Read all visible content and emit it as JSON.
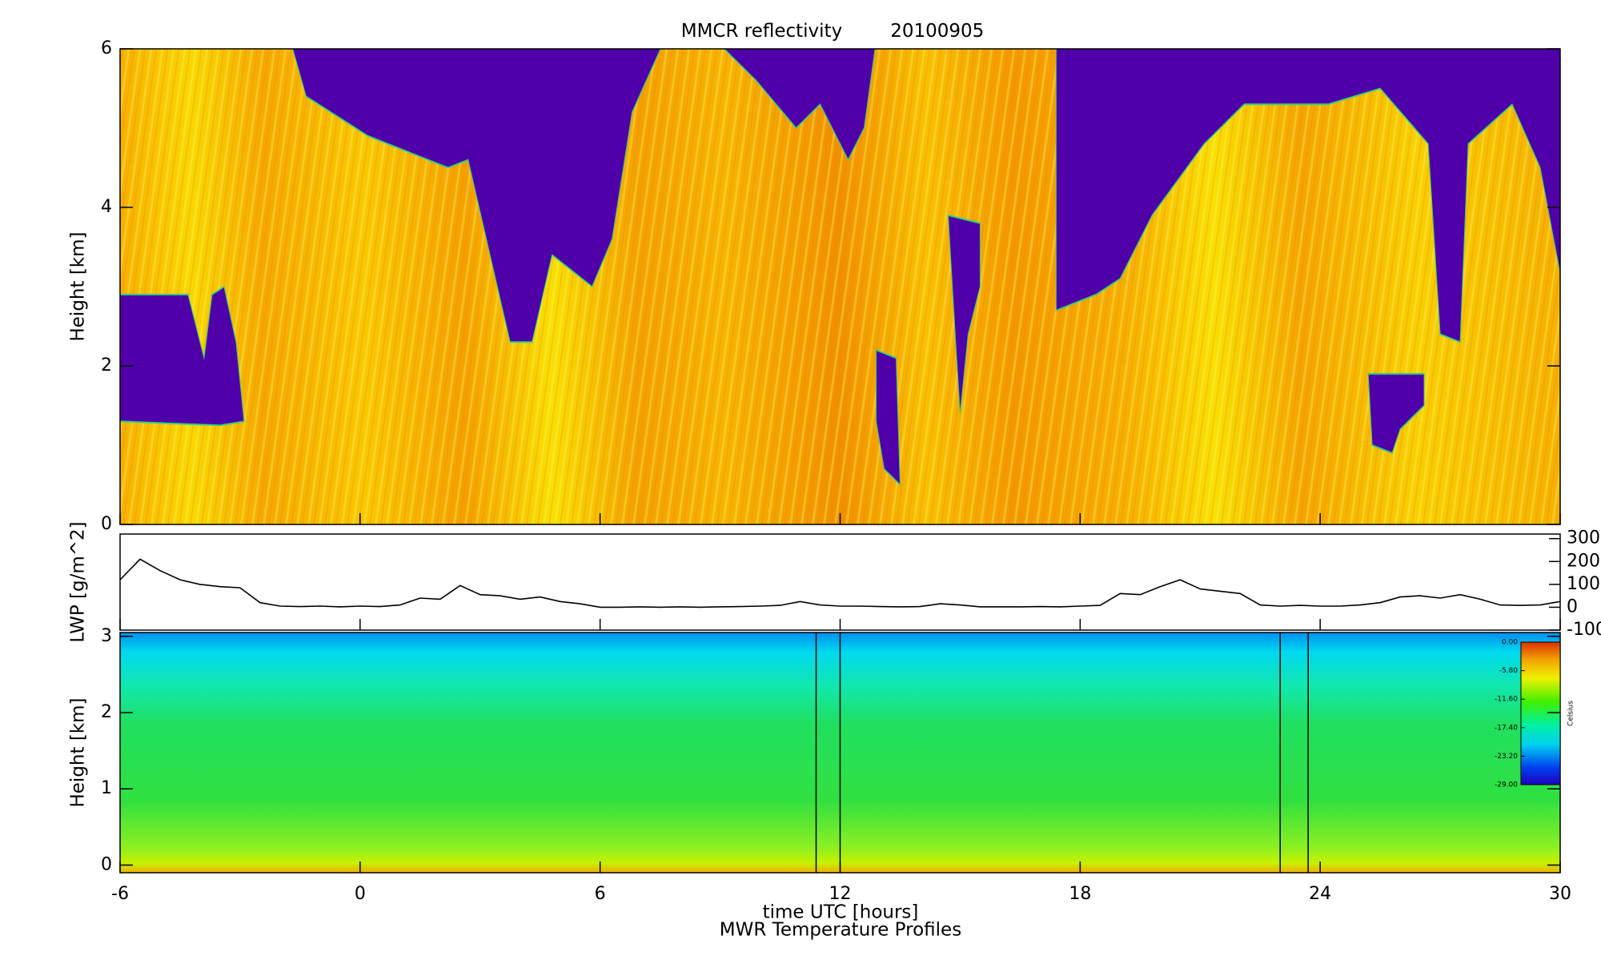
{
  "chart_data": [
    {
      "type": "heatmap",
      "title": "MMCR reflectivity",
      "date": "20100905",
      "ylabel": "Height [km]",
      "xlim": [
        -6,
        30
      ],
      "ylim": [
        0,
        6
      ],
      "yticks": [
        0,
        2,
        4,
        6
      ]
    },
    {
      "type": "line",
      "ylabel": "LWP [g/m^2]",
      "color": "#000000",
      "xlim": [
        -6,
        30
      ],
      "ylim": [
        -100,
        320
      ],
      "yticks": [
        300,
        200,
        100,
        0,
        -100
      ],
      "y_axis_side": "right",
      "x": [
        -6,
        -5.5,
        -5,
        -4.5,
        -4,
        -3.5,
        -3,
        -2.5,
        -2,
        -1.5,
        -1,
        -0.5,
        0,
        0.5,
        1,
        1.5,
        2,
        2.5,
        3,
        3.5,
        4,
        4.5,
        5,
        5.5,
        6,
        6.5,
        7,
        7.5,
        8,
        8.5,
        9,
        9.5,
        10,
        10.5,
        11,
        11.5,
        12,
        12.5,
        13,
        13.5,
        14,
        14.5,
        15,
        15.5,
        16,
        16.5,
        17,
        17.5,
        18,
        18.5,
        19,
        19.5,
        20,
        20.5,
        21,
        21.5,
        22,
        22.5,
        23,
        23.5,
        24,
        24.5,
        25,
        25.5,
        26,
        26.5,
        27,
        27.5,
        28,
        28.5,
        29,
        29.5,
        30
      ],
      "values": [
        120,
        210,
        160,
        120,
        100,
        90,
        85,
        20,
        5,
        3,
        5,
        2,
        5,
        3,
        10,
        40,
        35,
        95,
        55,
        50,
        35,
        45,
        25,
        15,
        0,
        0,
        2,
        0,
        2,
        0,
        2,
        3,
        5,
        8,
        25,
        10,
        5,
        5,
        3,
        2,
        3,
        15,
        10,
        2,
        2,
        2,
        3,
        2,
        5,
        8,
        60,
        55,
        90,
        120,
        80,
        70,
        60,
        10,
        5,
        8,
        5,
        5,
        10,
        20,
        45,
        50,
        40,
        55,
        35,
        10,
        8,
        10,
        25
      ]
    },
    {
      "type": "contour",
      "title": "MWR Temperature Profiles",
      "xlabel": "time UTC [hours]",
      "ylabel": "Height [km]",
      "xlim": [
        -6,
        30
      ],
      "xticks": [
        -6,
        0,
        6,
        12,
        18,
        24,
        30
      ],
      "ylim": [
        -0.1,
        3.05
      ],
      "yticks": [
        0,
        1,
        2,
        3
      ],
      "gap_lines": [
        11.4,
        12,
        23,
        23.7
      ],
      "colorbar": {
        "label": "Celsius",
        "lim": [
          -29,
          0
        ],
        "ticks": [
          {
            "value": 0,
            "label": "0.00"
          },
          {
            "value": -5.8,
            "label": "-5.80"
          },
          {
            "value": -11.6,
            "label": "-11.60"
          },
          {
            "value": -17.4,
            "label": "-17.40"
          },
          {
            "value": -23.2,
            "label": "-23.20"
          },
          {
            "value": -29,
            "label": "-29.00"
          }
        ]
      }
    }
  ]
}
